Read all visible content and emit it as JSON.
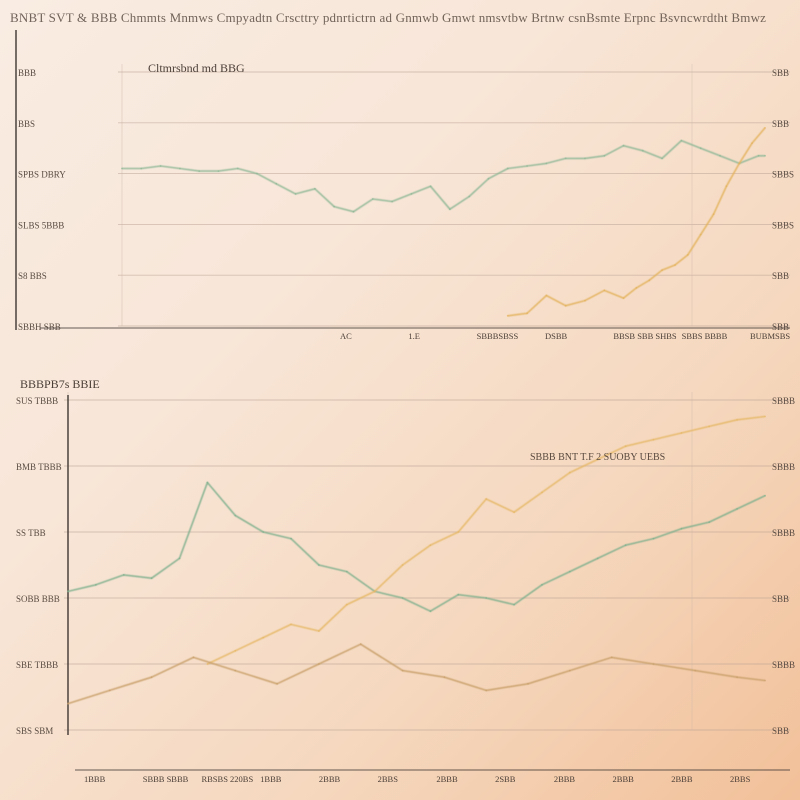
{
  "header": {
    "title": "BNBT SVT & BBB Chmmts Mnmws Cmpyadtn Crscttry pdnrtictrn ad Gnmwb Gmwt nmsvtbw Brtnw csnBsmte Erpnc Bsvncwrdtht Bmwz"
  },
  "chart_data": [
    {
      "type": "line",
      "title": "Cltmrsbnd md BBG",
      "ylabel": "",
      "xlabel": "",
      "ylim": [
        0,
        100
      ],
      "left_tick_labels": [
        "BBB",
        "BBS",
        "SPBS DBRY",
        "SLBS 5BBB",
        "S8 BBS",
        "SBBH SBB"
      ],
      "right_tick_labels": [
        "SBB",
        "SBB",
        "SBBS",
        "SBBS",
        "SBB",
        "SBB"
      ],
      "x_tick_labels": [
        "AC",
        "1.E",
        "SBBBSBSS",
        "DSBB",
        "BBSB SBB SHBS",
        "SBBS BBBB",
        "BUBMSBS"
      ],
      "series": [
        {
          "color": "#8fb896",
          "x": [
            0,
            3,
            6,
            9,
            12,
            15,
            18,
            21,
            24,
            27,
            30,
            33,
            36,
            39,
            42,
            45,
            48,
            51,
            54,
            57,
            60,
            63,
            66,
            69,
            72,
            75,
            78,
            81,
            84,
            87,
            90,
            93,
            96,
            99,
            100
          ],
          "values": [
            62,
            62,
            63,
            62,
            61,
            61,
            62,
            60,
            56,
            52,
            54,
            47,
            45,
            50,
            49,
            52,
            55,
            46,
            51,
            58,
            62,
            63,
            64,
            66,
            66,
            67,
            71,
            69,
            66,
            73,
            70,
            67,
            64,
            67,
            67
          ]
        },
        {
          "color": "#e3b25c",
          "x": [
            60,
            63,
            66,
            69,
            72,
            75,
            78,
            80,
            82,
            84,
            86,
            88,
            90,
            92,
            94,
            96,
            98,
            100
          ],
          "values": [
            4,
            5,
            12,
            8,
            10,
            14,
            11,
            15,
            18,
            22,
            24,
            28,
            36,
            44,
            55,
            64,
            72,
            78
          ]
        }
      ]
    },
    {
      "type": "line",
      "title": "BBBPB7s BBIE",
      "ylabel": "",
      "xlabel": "",
      "ylim": [
        0,
        100
      ],
      "annotation": "SBBB BNT T.F 2 SUOBY UEBS",
      "left_tick_labels": [
        "SUS TBBB",
        "BMB TBBB",
        "SS TBB",
        "SOBB BBB",
        "SBE TBBB",
        "SBS SBM"
      ],
      "right_tick_labels": [
        "SBBB",
        "SBBB",
        "SBBB",
        "SBB",
        "SBBB",
        "SBB"
      ],
      "x_tick_labels": [
        "1BBB",
        "SBBB SBBB",
        "RBSBS 220BS",
        "1BBB",
        "2BBB",
        "2BBS",
        "2BBB",
        "2SBB",
        "2BBB",
        "2BBB",
        "2BBB",
        "2BBS"
      ],
      "series": [
        {
          "color": "#7fb08d",
          "x": [
            0,
            4,
            8,
            12,
            16,
            20,
            24,
            28,
            32,
            36,
            40,
            44,
            48,
            52,
            56,
            60,
            64,
            68,
            72,
            76,
            80,
            84,
            88,
            92,
            96,
            100
          ],
          "values": [
            42,
            44,
            47,
            46,
            52,
            75,
            65,
            60,
            58,
            50,
            48,
            42,
            40,
            36,
            41,
            40,
            38,
            44,
            48,
            52,
            56,
            58,
            61,
            63,
            67,
            71
          ]
        },
        {
          "color": "#e6b866",
          "x": [
            20,
            24,
            28,
            32,
            36,
            40,
            44,
            48,
            52,
            56,
            60,
            64,
            68,
            72,
            76,
            80,
            84,
            88,
            92,
            96,
            100
          ],
          "values": [
            20,
            24,
            28,
            32,
            30,
            38,
            42,
            50,
            56,
            60,
            70,
            66,
            72,
            78,
            82,
            86,
            88,
            90,
            92,
            94,
            95
          ]
        },
        {
          "color": "#c9a06b",
          "x": [
            0,
            6,
            12,
            18,
            24,
            30,
            36,
            42,
            48,
            54,
            60,
            66,
            72,
            78,
            84,
            90,
            96,
            100
          ],
          "values": [
            8,
            12,
            16,
            22,
            18,
            14,
            20,
            26,
            18,
            16,
            12,
            14,
            18,
            22,
            20,
            18,
            16,
            15
          ]
        }
      ]
    }
  ]
}
